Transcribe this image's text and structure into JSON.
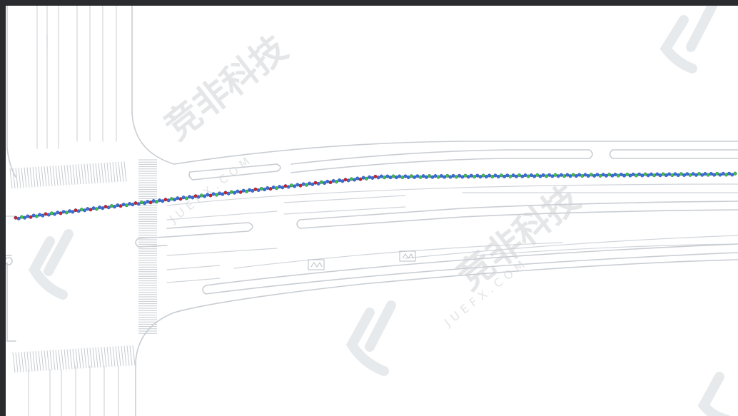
{
  "watermark": {
    "brand_cn": "竞非科技",
    "brand_en": "JUEFX.COM"
  },
  "colors": {
    "frame_background": "#2a2b2e",
    "map_background": "#ffffff",
    "lane_line": "#c9cdd2",
    "watermark": "#cfd3d7",
    "trajectory_blue": "#3a6fd8",
    "trajectory_green": "#3cc43c",
    "trajectory_red": "#d42020"
  },
  "trajectory": {
    "point_colors": [
      "blue",
      "green",
      "red"
    ],
    "path": "continuous GPS track running left-to-right along the upper lanes of the road"
  }
}
